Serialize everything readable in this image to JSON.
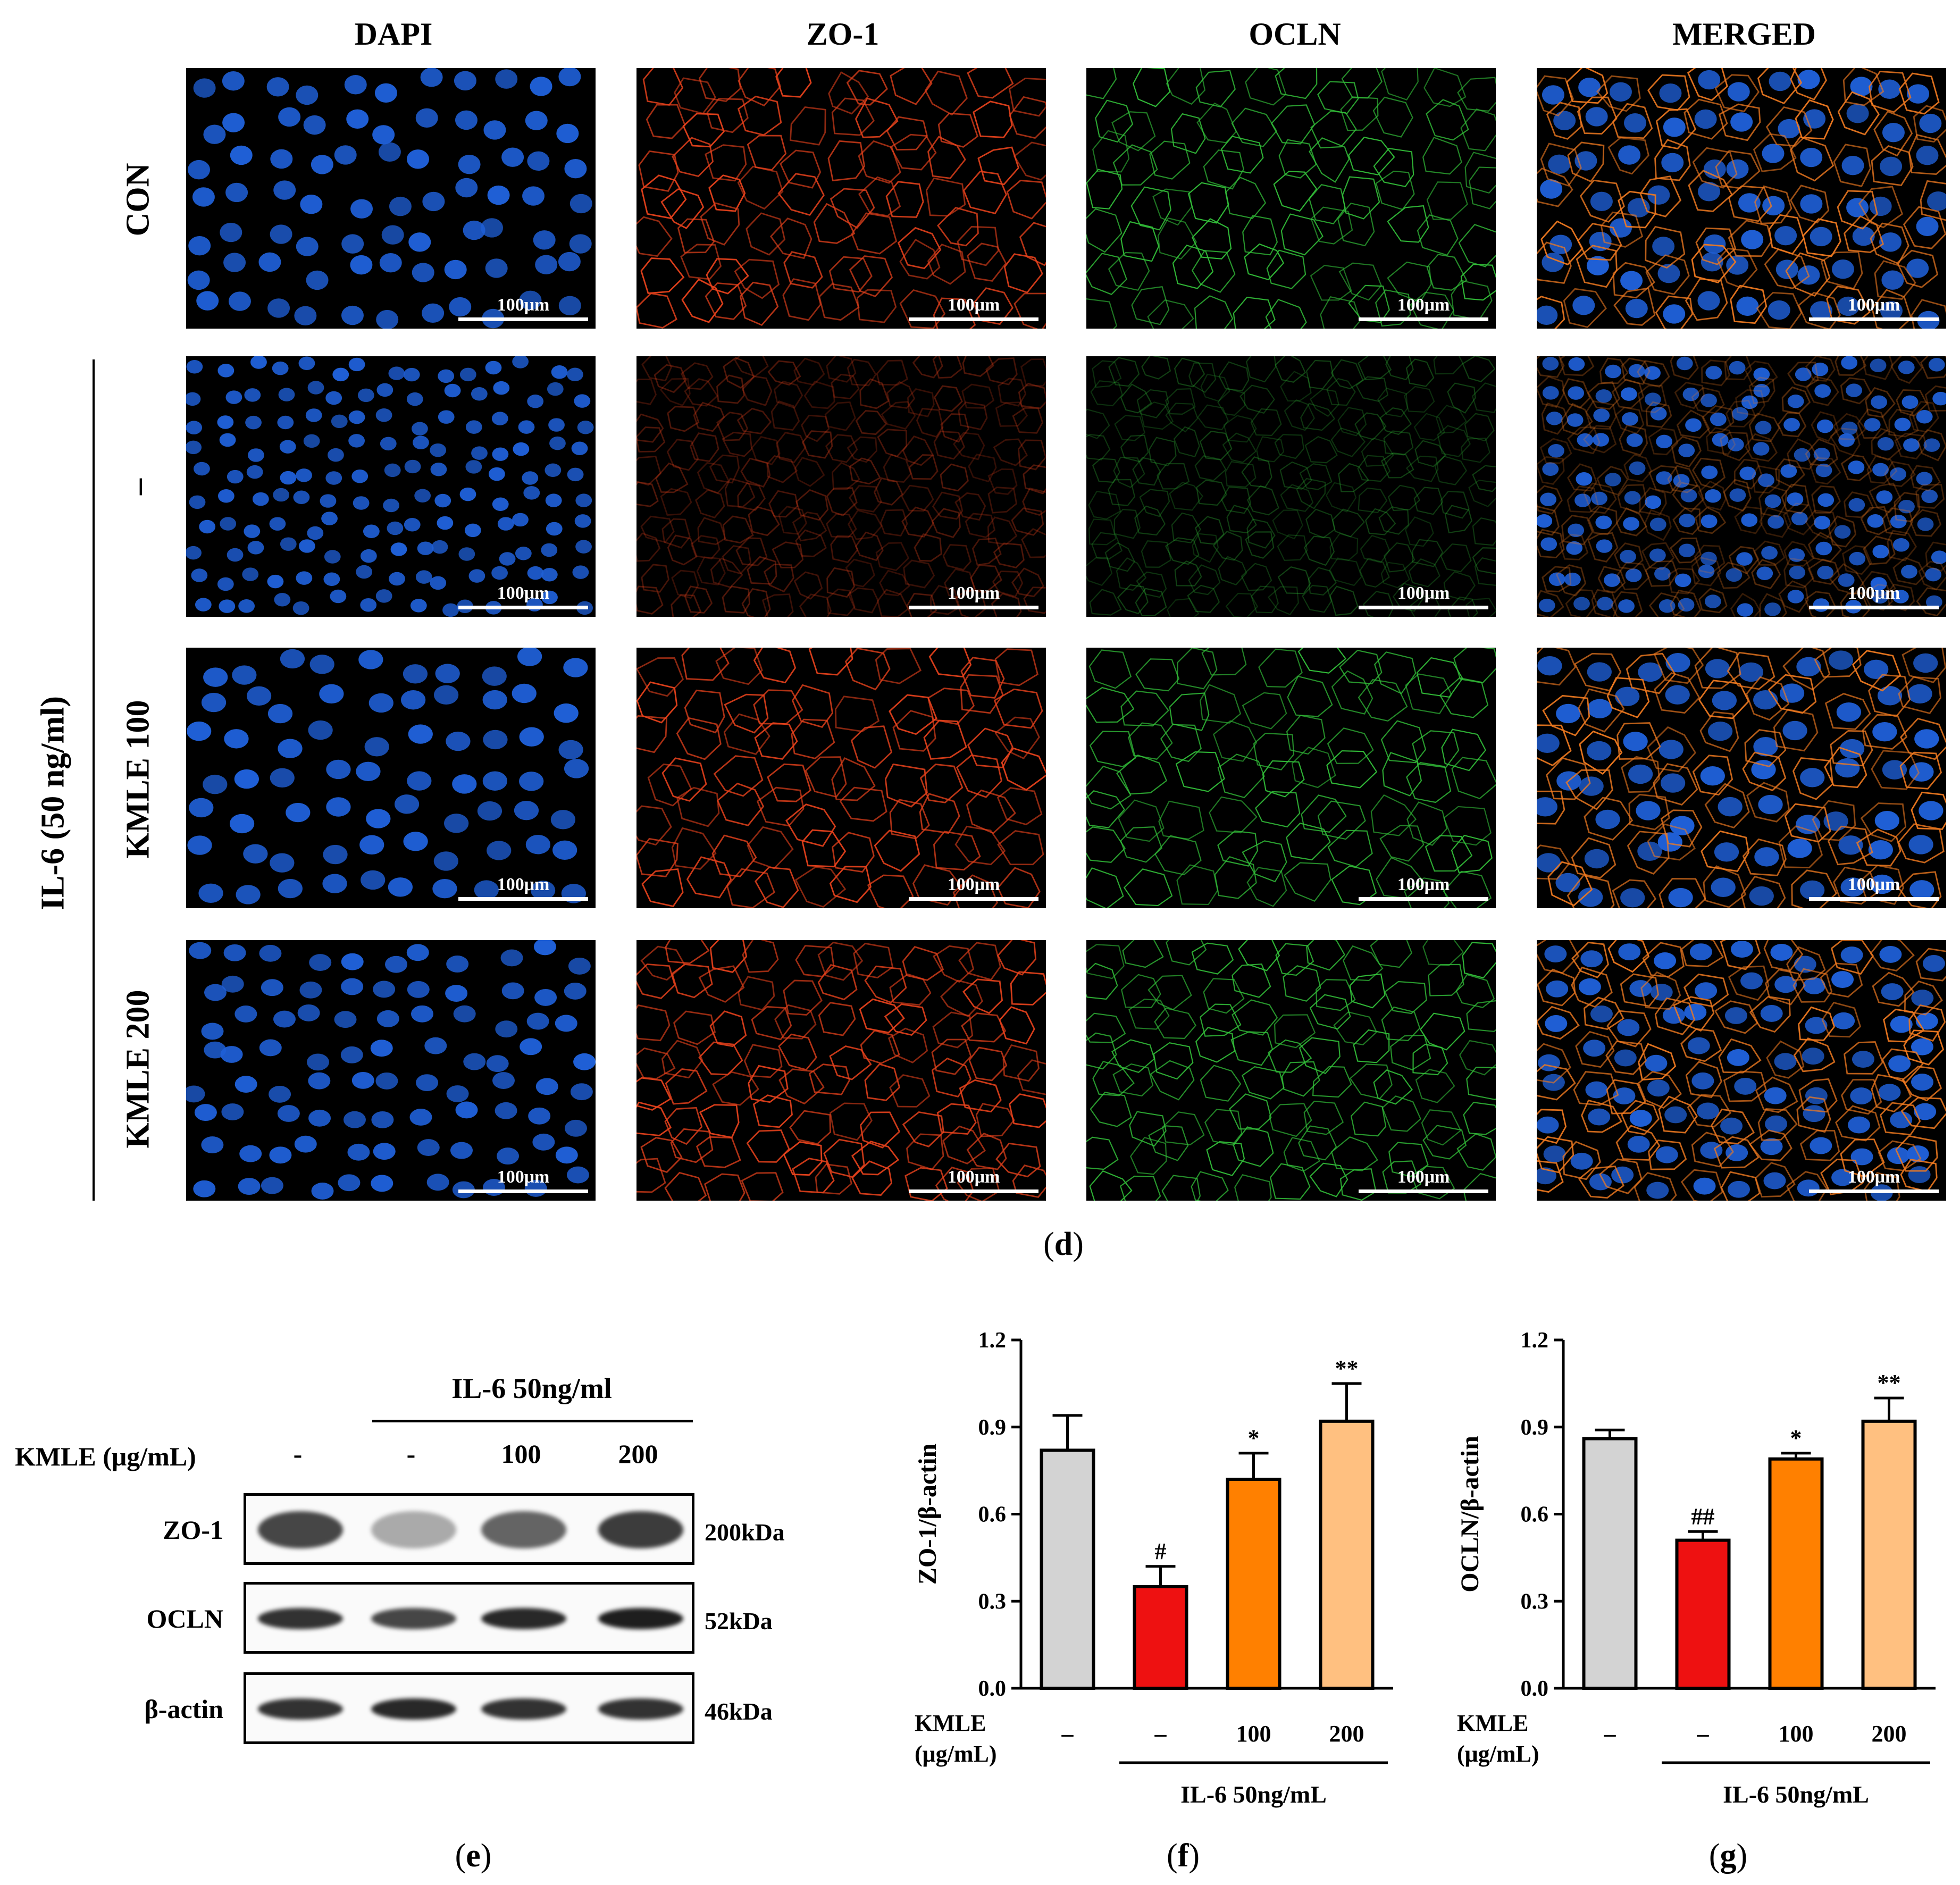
{
  "micrographs": {
    "columns": [
      "DAPI",
      "ZO-1",
      "OCLN",
      "MERGED"
    ],
    "rows": [
      "CON",
      "–",
      "KMLE 100",
      "KMLE 200"
    ],
    "group_label": "IL-6 (50 ng/ml)",
    "scale_bar": "100μm",
    "colors": {
      "DAPI": "#1f5fd6",
      "ZO-1": "#e8421c",
      "OCLN": "#33c23a",
      "MERGED": "#f07a20"
    },
    "caption": "d"
  },
  "western_blot": {
    "treatment_label": "IL-6 50ng/ml",
    "kmle_label": "KMLE (μg/mL)",
    "lanes": [
      "-",
      "-",
      "100",
      "200"
    ],
    "bands": [
      {
        "name": "ZO-1",
        "kda": "200kDa",
        "intensity": [
          0.75,
          0.25,
          0.6,
          0.8
        ]
      },
      {
        "name": "OCLN",
        "kda": "52kDa",
        "intensity": [
          0.85,
          0.75,
          0.9,
          0.95
        ]
      },
      {
        "name": "β-actin",
        "kda": "46kDa",
        "intensity": [
          0.85,
          0.9,
          0.85,
          0.85
        ]
      }
    ],
    "caption": "e"
  },
  "chart_data": [
    {
      "type": "bar",
      "ylabel": "ZO-1/β-actin",
      "ylim": [
        0,
        1.2
      ],
      "yticks": [
        "0.0",
        "0.3",
        "0.6",
        "0.9",
        "1.2"
      ],
      "categories": [
        "–",
        "–",
        "100",
        "200"
      ],
      "values": [
        0.82,
        0.35,
        0.72,
        0.92
      ],
      "errors": [
        0.12,
        0.07,
        0.09,
        0.13
      ],
      "significance": [
        "",
        "#",
        "*",
        "**"
      ],
      "colors": [
        "#d3d3d3",
        "#ee1111",
        "#ff8000",
        "#ffc080"
      ],
      "x_row_label": [
        "KMLE",
        "(μg/mL)"
      ],
      "group_label": "IL-6 50ng/mL",
      "caption": "f"
    },
    {
      "type": "bar",
      "ylabel": "OCLN/β-actin",
      "ylim": [
        0,
        1.2
      ],
      "yticks": [
        "0.0",
        "0.3",
        "0.6",
        "0.9",
        "1.2"
      ],
      "categories": [
        "–",
        "–",
        "100",
        "200"
      ],
      "values": [
        0.86,
        0.51,
        0.79,
        0.92
      ],
      "errors": [
        0.03,
        0.03,
        0.02,
        0.08
      ],
      "significance": [
        "",
        "##",
        "*",
        "**"
      ],
      "colors": [
        "#d3d3d3",
        "#ee1111",
        "#ff8000",
        "#ffc080"
      ],
      "x_row_label": [
        "KMLE",
        "(μg/mL)"
      ],
      "group_label": "IL-6 50ng/mL",
      "caption": "g"
    }
  ]
}
